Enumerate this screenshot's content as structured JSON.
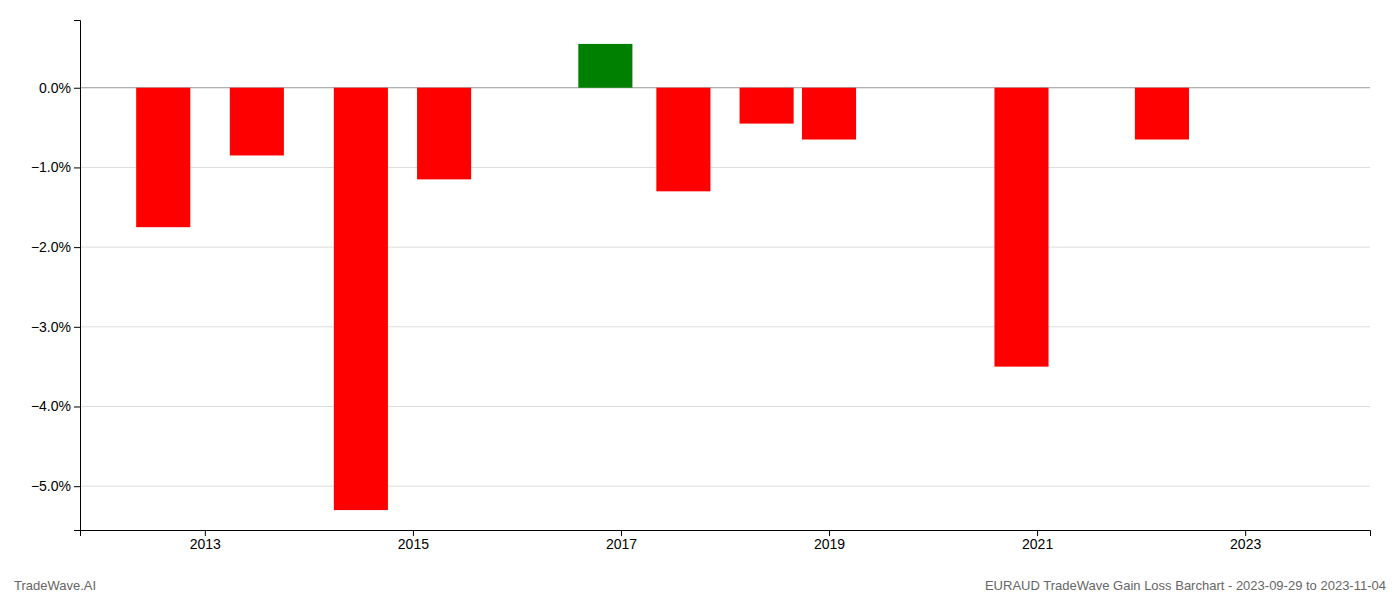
{
  "chart_data": {
    "type": "bar",
    "x": [
      2012.6,
      2013.5,
      2014.5,
      2015.3,
      2016.85,
      2017.6,
      2018.4,
      2019.0,
      2020.85,
      2022.2
    ],
    "values": [
      -1.75,
      -0.85,
      -5.3,
      -1.15,
      0.55,
      -1.3,
      -0.45,
      -0.65,
      -3.5,
      -0.65
    ],
    "colors": [
      "#ff0000",
      "#ff0000",
      "#ff0000",
      "#ff0000",
      "#008000",
      "#ff0000",
      "#ff0000",
      "#ff0000",
      "#ff0000",
      "#ff0000"
    ],
    "xlim": [
      2011.8,
      2024.2
    ],
    "ylim": [
      -5.55,
      0.85
    ],
    "xticks": [
      2013,
      2015,
      2017,
      2019,
      2021,
      2023
    ],
    "yticks": [
      {
        "value": 0.0,
        "label": "0.0%"
      },
      {
        "value": -1.0,
        "label": "−1.0%"
      },
      {
        "value": -2.0,
        "label": "−2.0%"
      },
      {
        "value": -3.0,
        "label": "−3.0%"
      },
      {
        "value": -4.0,
        "label": "−4.0%"
      },
      {
        "value": -5.0,
        "label": "−5.0%"
      }
    ],
    "grid": true,
    "annotations": [
      "TradeWave.AI",
      "EURAUD TradeWave Gain Loss Barchart - 2023-09-29 to 2023-11-04"
    ]
  }
}
